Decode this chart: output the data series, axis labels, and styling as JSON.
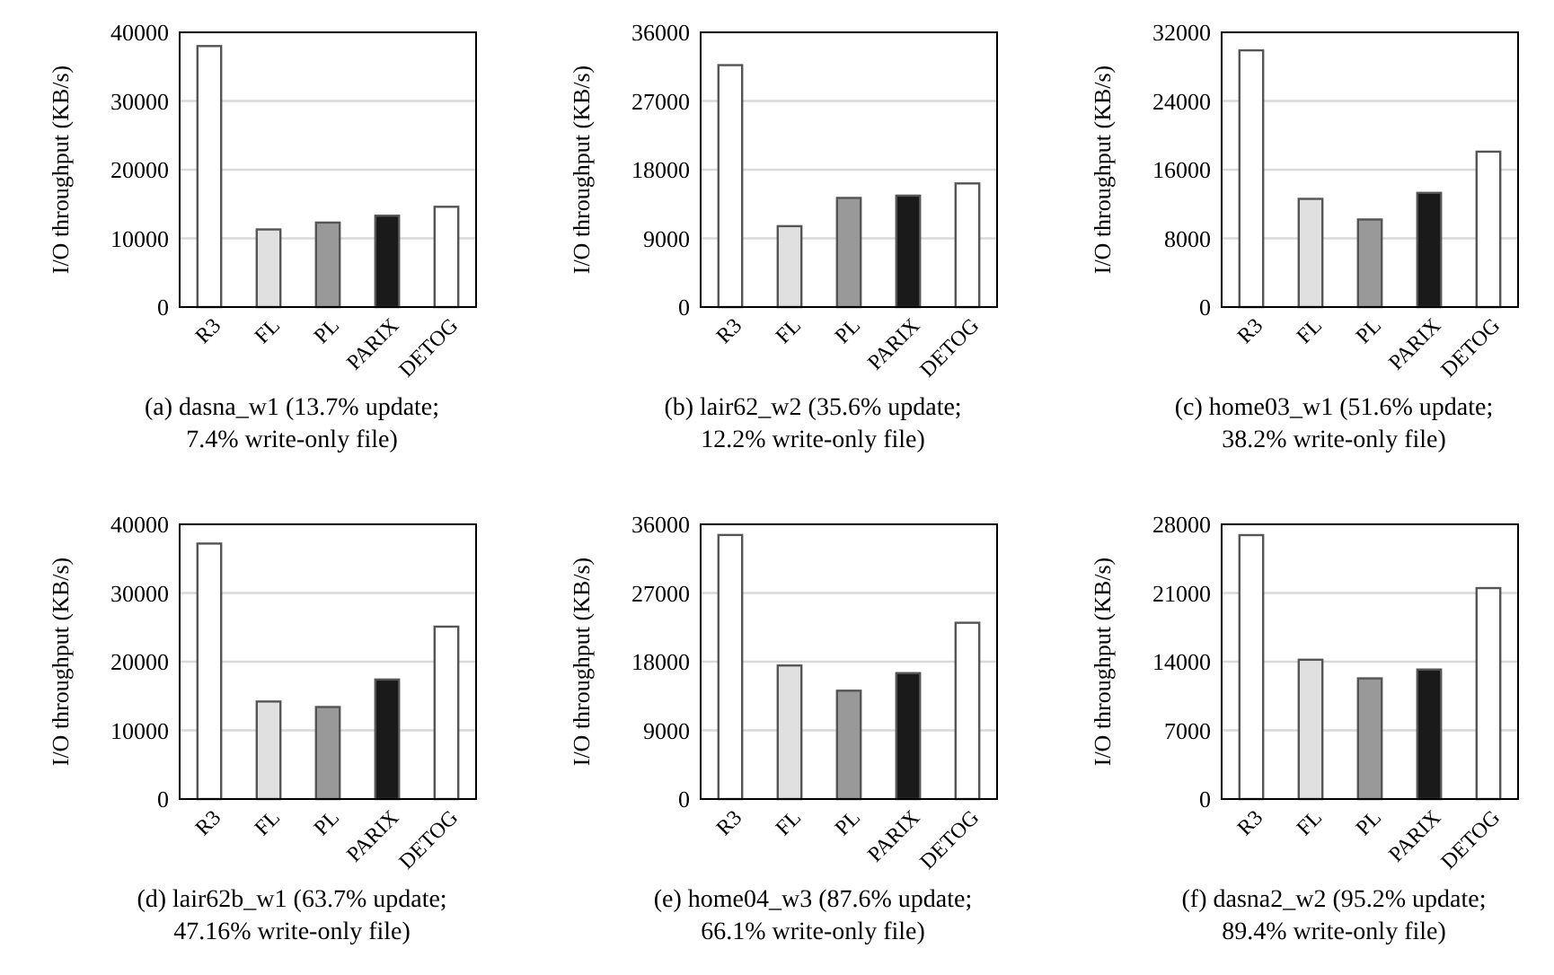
{
  "chart_data": [
    {
      "type": "bar",
      "title": "(a) dasna_w1 (13.7% update; 7.4% write-only file)",
      "ylabel": "I/O throughput (KB/s)",
      "categories": [
        "R3",
        "FL",
        "PL",
        "PARIX",
        "DETOG"
      ],
      "values": [
        38000,
        11300,
        12300,
        13300,
        14600
      ],
      "colors": [
        "#ffffff",
        "#e0e0e0",
        "#999999",
        "#1a1a1a",
        "#ffffff"
      ],
      "ylim": [
        0,
        40000
      ],
      "yticks": [
        0,
        10000,
        20000,
        30000,
        40000
      ],
      "grid": "y"
    },
    {
      "type": "bar",
      "title": "(b) lair62_w2 (35.6% update; 12.2% write-only file)",
      "ylabel": "I/O throughput (KB/s)",
      "categories": [
        "R3",
        "FL",
        "PL",
        "PARIX",
        "DETOG"
      ],
      "values": [
        31700,
        10600,
        14300,
        14600,
        16200
      ],
      "colors": [
        "#ffffff",
        "#e0e0e0",
        "#999999",
        "#1a1a1a",
        "#ffffff"
      ],
      "ylim": [
        0,
        36000
      ],
      "yticks": [
        0,
        9000,
        18000,
        27000,
        36000
      ],
      "grid": "y"
    },
    {
      "type": "bar",
      "title": "(c) home03_w1 (51.6% update; 38.2% write-only file)",
      "ylabel": "I/O throughput (KB/s)",
      "categories": [
        "R3",
        "FL",
        "PL",
        "PARIX",
        "DETOG"
      ],
      "values": [
        29900,
        12600,
        10200,
        13300,
        18100
      ],
      "colors": [
        "#ffffff",
        "#e0e0e0",
        "#999999",
        "#1a1a1a",
        "#ffffff"
      ],
      "ylim": [
        0,
        32000
      ],
      "yticks": [
        0,
        8000,
        16000,
        24000,
        32000
      ],
      "grid": "y"
    },
    {
      "type": "bar",
      "title": "(d) lair62b_w1 (63.7% update; 47.16% write-only file)",
      "ylabel": "I/O throughput (KB/s)",
      "categories": [
        "R3",
        "FL",
        "PL",
        "PARIX",
        "DETOG"
      ],
      "values": [
        37200,
        14200,
        13400,
        17400,
        25100
      ],
      "colors": [
        "#ffffff",
        "#e0e0e0",
        "#999999",
        "#1a1a1a",
        "#ffffff"
      ],
      "ylim": [
        0,
        40000
      ],
      "yticks": [
        0,
        10000,
        20000,
        30000,
        40000
      ],
      "grid": "y"
    },
    {
      "type": "bar",
      "title": "(e) home04_w3 (87.6% update; 66.1% write-only file)",
      "ylabel": "I/O throughput (KB/s)",
      "categories": [
        "R3",
        "FL",
        "PL",
        "PARIX",
        "DETOG"
      ],
      "values": [
        34600,
        17500,
        14200,
        16500,
        23100
      ],
      "colors": [
        "#ffffff",
        "#e0e0e0",
        "#999999",
        "#1a1a1a",
        "#ffffff"
      ],
      "ylim": [
        0,
        36000
      ],
      "yticks": [
        0,
        9000,
        18000,
        27000,
        36000
      ],
      "grid": "y"
    },
    {
      "type": "bar",
      "title": "(f) dasna2_w2 (95.2% update; 89.4% write-only file)",
      "ylabel": "I/O throughput (KB/s)",
      "categories": [
        "R3",
        "FL",
        "PL",
        "PARIX",
        "DETOG"
      ],
      "values": [
        26900,
        14200,
        12300,
        13200,
        21500
      ],
      "colors": [
        "#ffffff",
        "#e0e0e0",
        "#999999",
        "#1a1a1a",
        "#ffffff"
      ],
      "ylim": [
        0,
        28000
      ],
      "yticks": [
        0,
        7000,
        14000,
        21000,
        28000
      ],
      "grid": "y"
    }
  ]
}
